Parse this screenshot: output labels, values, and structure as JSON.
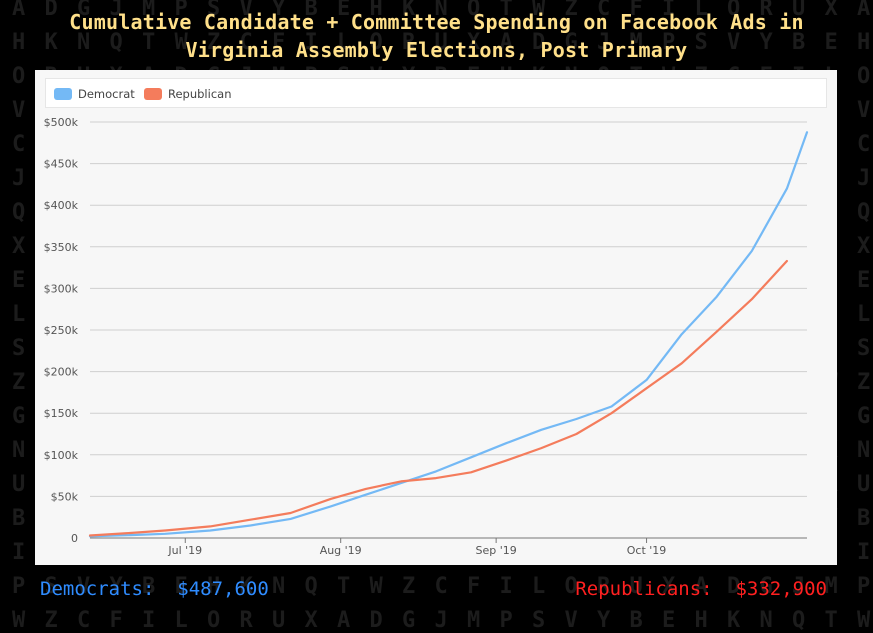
{
  "title_line1": "Cumulative Candidate + Committee Spending on Facebook Ads in",
  "title_line2": "Virginia Assembly Elections, Post Primary",
  "colors": {
    "democrat": "#74b9f5",
    "republican": "#f47c5c",
    "title": "#ffe08a",
    "footer_dem": "#2f8cff",
    "footer_rep": "#ff2020"
  },
  "footer": {
    "dem_label": "Democrats:",
    "dem_value": "$487,600",
    "rep_label": "Republicans:",
    "rep_value": "$332,900"
  },
  "chart_data": {
    "type": "line",
    "title": "Cumulative Candidate + Committee Spending on Facebook Ads in Virginia Assembly Elections, Post Primary",
    "xlabel": "",
    "ylabel": "",
    "x_ticks": [
      {
        "date": "2019-07-01",
        "label": "Jul '19"
      },
      {
        "date": "2019-08-01",
        "label": "Aug '19"
      },
      {
        "date": "2019-09-01",
        "label": "Sep '19"
      },
      {
        "date": "2019-10-01",
        "label": "Oct '19"
      }
    ],
    "xlim": [
      "2019-06-12",
      "2019-11-02"
    ],
    "ylim": [
      0,
      500000
    ],
    "y_ticks": [
      {
        "value": 0,
        "label": "0"
      },
      {
        "value": 50000,
        "label": "$50k"
      },
      {
        "value": 100000,
        "label": "$100k"
      },
      {
        "value": 150000,
        "label": "$150k"
      },
      {
        "value": 200000,
        "label": "$200k"
      },
      {
        "value": 250000,
        "label": "$250k"
      },
      {
        "value": 300000,
        "label": "$300k"
      },
      {
        "value": 350000,
        "label": "$350k"
      },
      {
        "value": 400000,
        "label": "$400k"
      },
      {
        "value": 450000,
        "label": "$450k"
      },
      {
        "value": 500000,
        "label": "$500k"
      }
    ],
    "grid": true,
    "legend": "top-left",
    "series": [
      {
        "name": "Democrat",
        "points": [
          {
            "x": "2019-06-12",
            "y": 2000
          },
          {
            "x": "2019-06-20",
            "y": 3500
          },
          {
            "x": "2019-06-27",
            "y": 5000
          },
          {
            "x": "2019-07-06",
            "y": 9000
          },
          {
            "x": "2019-07-14",
            "y": 15000
          },
          {
            "x": "2019-07-22",
            "y": 23000
          },
          {
            "x": "2019-07-30",
            "y": 38000
          },
          {
            "x": "2019-08-06",
            "y": 52000
          },
          {
            "x": "2019-08-13",
            "y": 66000
          },
          {
            "x": "2019-08-20",
            "y": 80000
          },
          {
            "x": "2019-08-27",
            "y": 97000
          },
          {
            "x": "2019-09-03",
            "y": 114000
          },
          {
            "x": "2019-09-10",
            "y": 130000
          },
          {
            "x": "2019-09-17",
            "y": 143000
          },
          {
            "x": "2019-09-24",
            "y": 158000
          },
          {
            "x": "2019-10-01",
            "y": 190000
          },
          {
            "x": "2019-10-08",
            "y": 245000
          },
          {
            "x": "2019-10-15",
            "y": 290000
          },
          {
            "x": "2019-10-22",
            "y": 345000
          },
          {
            "x": "2019-10-29",
            "y": 420000
          },
          {
            "x": "2019-11-02",
            "y": 487600
          }
        ]
      },
      {
        "name": "Republican",
        "points": [
          {
            "x": "2019-06-12",
            "y": 3000
          },
          {
            "x": "2019-06-20",
            "y": 6000
          },
          {
            "x": "2019-06-27",
            "y": 9000
          },
          {
            "x": "2019-07-06",
            "y": 14000
          },
          {
            "x": "2019-07-14",
            "y": 22000
          },
          {
            "x": "2019-07-22",
            "y": 30000
          },
          {
            "x": "2019-07-30",
            "y": 47000
          },
          {
            "x": "2019-08-06",
            "y": 59000
          },
          {
            "x": "2019-08-13",
            "y": 68000
          },
          {
            "x": "2019-08-20",
            "y": 72000
          },
          {
            "x": "2019-08-27",
            "y": 79000
          },
          {
            "x": "2019-09-03",
            "y": 93000
          },
          {
            "x": "2019-09-10",
            "y": 108000
          },
          {
            "x": "2019-09-17",
            "y": 125000
          },
          {
            "x": "2019-09-24",
            "y": 150000
          },
          {
            "x": "2019-10-01",
            "y": 180000
          },
          {
            "x": "2019-10-08",
            "y": 210000
          },
          {
            "x": "2019-10-15",
            "y": 248000
          },
          {
            "x": "2019-10-22",
            "y": 287000
          },
          {
            "x": "2019-10-29",
            "y": 332900
          }
        ]
      }
    ]
  }
}
